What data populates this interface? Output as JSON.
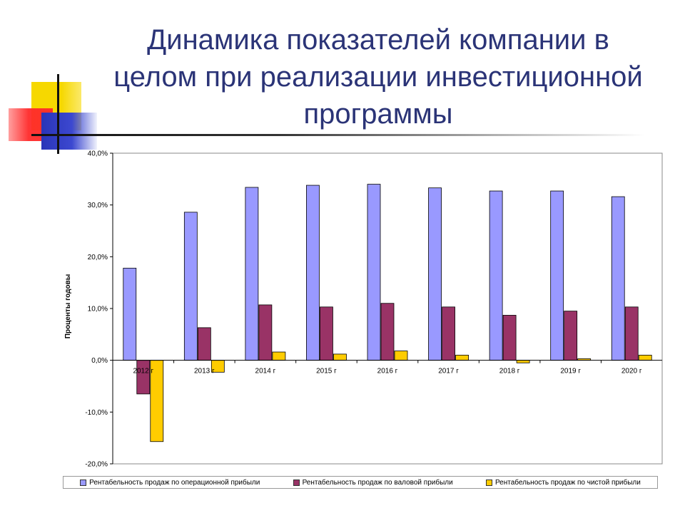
{
  "slide": {
    "title_lines": [
      "Динамика показателей компании в",
      "целом при реализации инвестиционной",
      "программы"
    ]
  },
  "chart_data": {
    "type": "bar",
    "categories": [
      "2012 г",
      "2013 г",
      "2014 г",
      "2015 г",
      "2016 г",
      "2017 г",
      "2018 г",
      "2019 г",
      "2020 г"
    ],
    "series": [
      {
        "name": "Рентабельность продаж по операционной прибыли",
        "color": "#9999ff",
        "values": [
          17.8,
          28.6,
          33.4,
          33.8,
          34.0,
          33.3,
          32.7,
          32.7,
          31.6
        ]
      },
      {
        "name": "Рентабельность продаж по валовой прибыли",
        "color": "#993366",
        "values": [
          -6.5,
          6.3,
          10.7,
          10.3,
          11.0,
          10.3,
          8.7,
          9.5,
          10.3
        ]
      },
      {
        "name": "Рентабельность продаж по чистой прибыли",
        "color": "#ffcc00",
        "values": [
          -15.7,
          -2.3,
          1.6,
          1.2,
          1.8,
          1.0,
          -0.5,
          0.3,
          1.0
        ]
      }
    ],
    "ylabel": "Проценты годовы",
    "ylim": [
      -20,
      40
    ],
    "yticks": [
      40,
      30,
      20,
      10,
      0,
      -10,
      -20
    ],
    "ytick_labels": [
      "40,0%",
      "30,0%",
      "20,0%",
      "10,0%",
      "0,0%",
      "-10,0%",
      "-20,0%"
    ],
    "grid": false,
    "legend_position": "bottom"
  }
}
